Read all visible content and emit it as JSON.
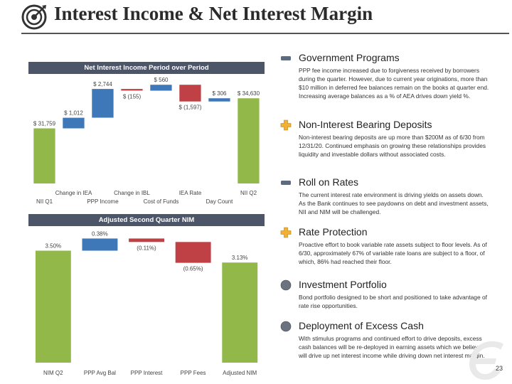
{
  "header": {
    "title": "Interest Income & Net Interest Margin"
  },
  "chart1": {
    "header": "Net Interest Income Period over Period",
    "labels": [
      {
        "key": "nii_q1",
        "text": "NII Q1"
      },
      {
        "key": "change_iea",
        "text": "Change in IEA"
      },
      {
        "key": "ppp_income",
        "text": "PPP Income"
      },
      {
        "key": "change_ibl",
        "text": "Change in IBL"
      },
      {
        "key": "cost_of_funds",
        "text": "Cost of Funds"
      },
      {
        "key": "iea_rate",
        "text": "IEA Rate"
      },
      {
        "key": "day_count",
        "text": "Day Count"
      },
      {
        "key": "nii_q2",
        "text": "NII Q2"
      }
    ]
  },
  "chart2": {
    "header": "Adjusted Second Quarter NIM",
    "labels": [
      {
        "key": "nim_q2",
        "text": "NIM Q2"
      },
      {
        "key": "ppp_avg_bal",
        "text": "PPP Avg Bal"
      },
      {
        "key": "ppp_interest",
        "text": "PPP Interest"
      },
      {
        "key": "ppp_fees",
        "text": "PPP Fees"
      },
      {
        "key": "adjusted_nim",
        "text": "Adjusted NIM"
      }
    ]
  },
  "chart_data": [
    {
      "type": "bar",
      "subtype": "waterfall",
      "title": "Net Interest Income Period over Period",
      "categories": [
        "NII Q1",
        "Change in IEA",
        "PPP Income",
        "Change in IBL",
        "Cost of Funds",
        "IEA Rate",
        "Day Count",
        "NII Q2"
      ],
      "values": [
        31759,
        1012,
        2744,
        -155,
        560,
        -1597,
        306,
        34630
      ],
      "value_labels": [
        "$ 31,759",
        "$ 1,012",
        "$ 2,744",
        "$ (155)",
        "$ 560",
        "$ (1,597)",
        "$ 306",
        "$ 34,630"
      ],
      "kinds": [
        "total",
        "increase",
        "increase",
        "decrease",
        "increase",
        "decrease",
        "increase",
        "total"
      ],
      "ylim": [
        26500,
        36000
      ],
      "colors": {
        "total": "#92b84a",
        "increase": "#3e78b8",
        "decrease": "#bf4145"
      },
      "grid": false,
      "legend": "none"
    },
    {
      "type": "bar",
      "subtype": "waterfall",
      "title": "Adjusted Second Quarter NIM",
      "categories": [
        "NIM Q2",
        "PPP Avg Bal",
        "PPP Interest",
        "PPP Fees",
        "Adjusted NIM"
      ],
      "values": [
        3.5,
        0.38,
        -0.11,
        -0.65,
        3.13
      ],
      "value_labels": [
        "3.50%",
        "0.38%",
        "(0.11%)",
        "(0.65%)",
        "3.13%"
      ],
      "kinds": [
        "total",
        "increase",
        "decrease",
        "decrease",
        "total"
      ],
      "ylim": [
        0,
        4.0
      ],
      "colors": {
        "total": "#92b84a",
        "increase": "#3e78b8",
        "decrease": "#bf4145"
      },
      "grid": false,
      "legend": "none"
    }
  ],
  "sections": [
    {
      "title": "Government Programs",
      "icon": "minus",
      "body": "PPP fee income increased due to forgiveness received by borrowers during the quarter.  However, due to current year originations, more than $10 million in deferred fee balances remain on the books at quarter end. Increasing average balances as a % of AEA drives down yield %."
    },
    {
      "title": "Non-Interest Bearing Deposits",
      "icon": "plus",
      "body": "Non-interest bearing deposits are up more than $200M as of 6/30 from 12/31/20.  Continued emphasis on growing these relationships provides liquidity and investable dollars without associated costs."
    },
    {
      "title": "Roll on Rates",
      "icon": "minus",
      "body": "The current interest rate environment is driving yields on assets down.  As the Bank continues to see paydowns on debt and investment assets, NII and NIM will be challenged."
    },
    {
      "title": "Rate Protection",
      "icon": "plus",
      "body": "Proactive effort to book variable rate assets subject to floor levels. As of 6/30, approximately 67% of variable rate loans are subject to a floor, of which, 86% had reached their floor."
    },
    {
      "title": "Investment Portfolio",
      "icon": "circle",
      "body": "Bond portfolio designed to be short and positioned to take advantage of rate rise opportunities."
    },
    {
      "title": "Deployment of Excess Cash",
      "icon": "circle",
      "body": "With stimulus programs and continued effort to drive deposits, excess cash balances will be re-deployed in earning assets which we believe will drive up net interest income while driving down net interest margin."
    }
  ],
  "icons": {
    "minus": "minus-icon",
    "plus": "plus-icon",
    "circle": "circle-icon"
  },
  "colors": {
    "header_bar": "#4d5569",
    "minus_icon": "#5d6b80",
    "plus_icon": "#f2b134",
    "circle_icon": "#6b7280"
  },
  "footer": {
    "page_number": "23"
  }
}
